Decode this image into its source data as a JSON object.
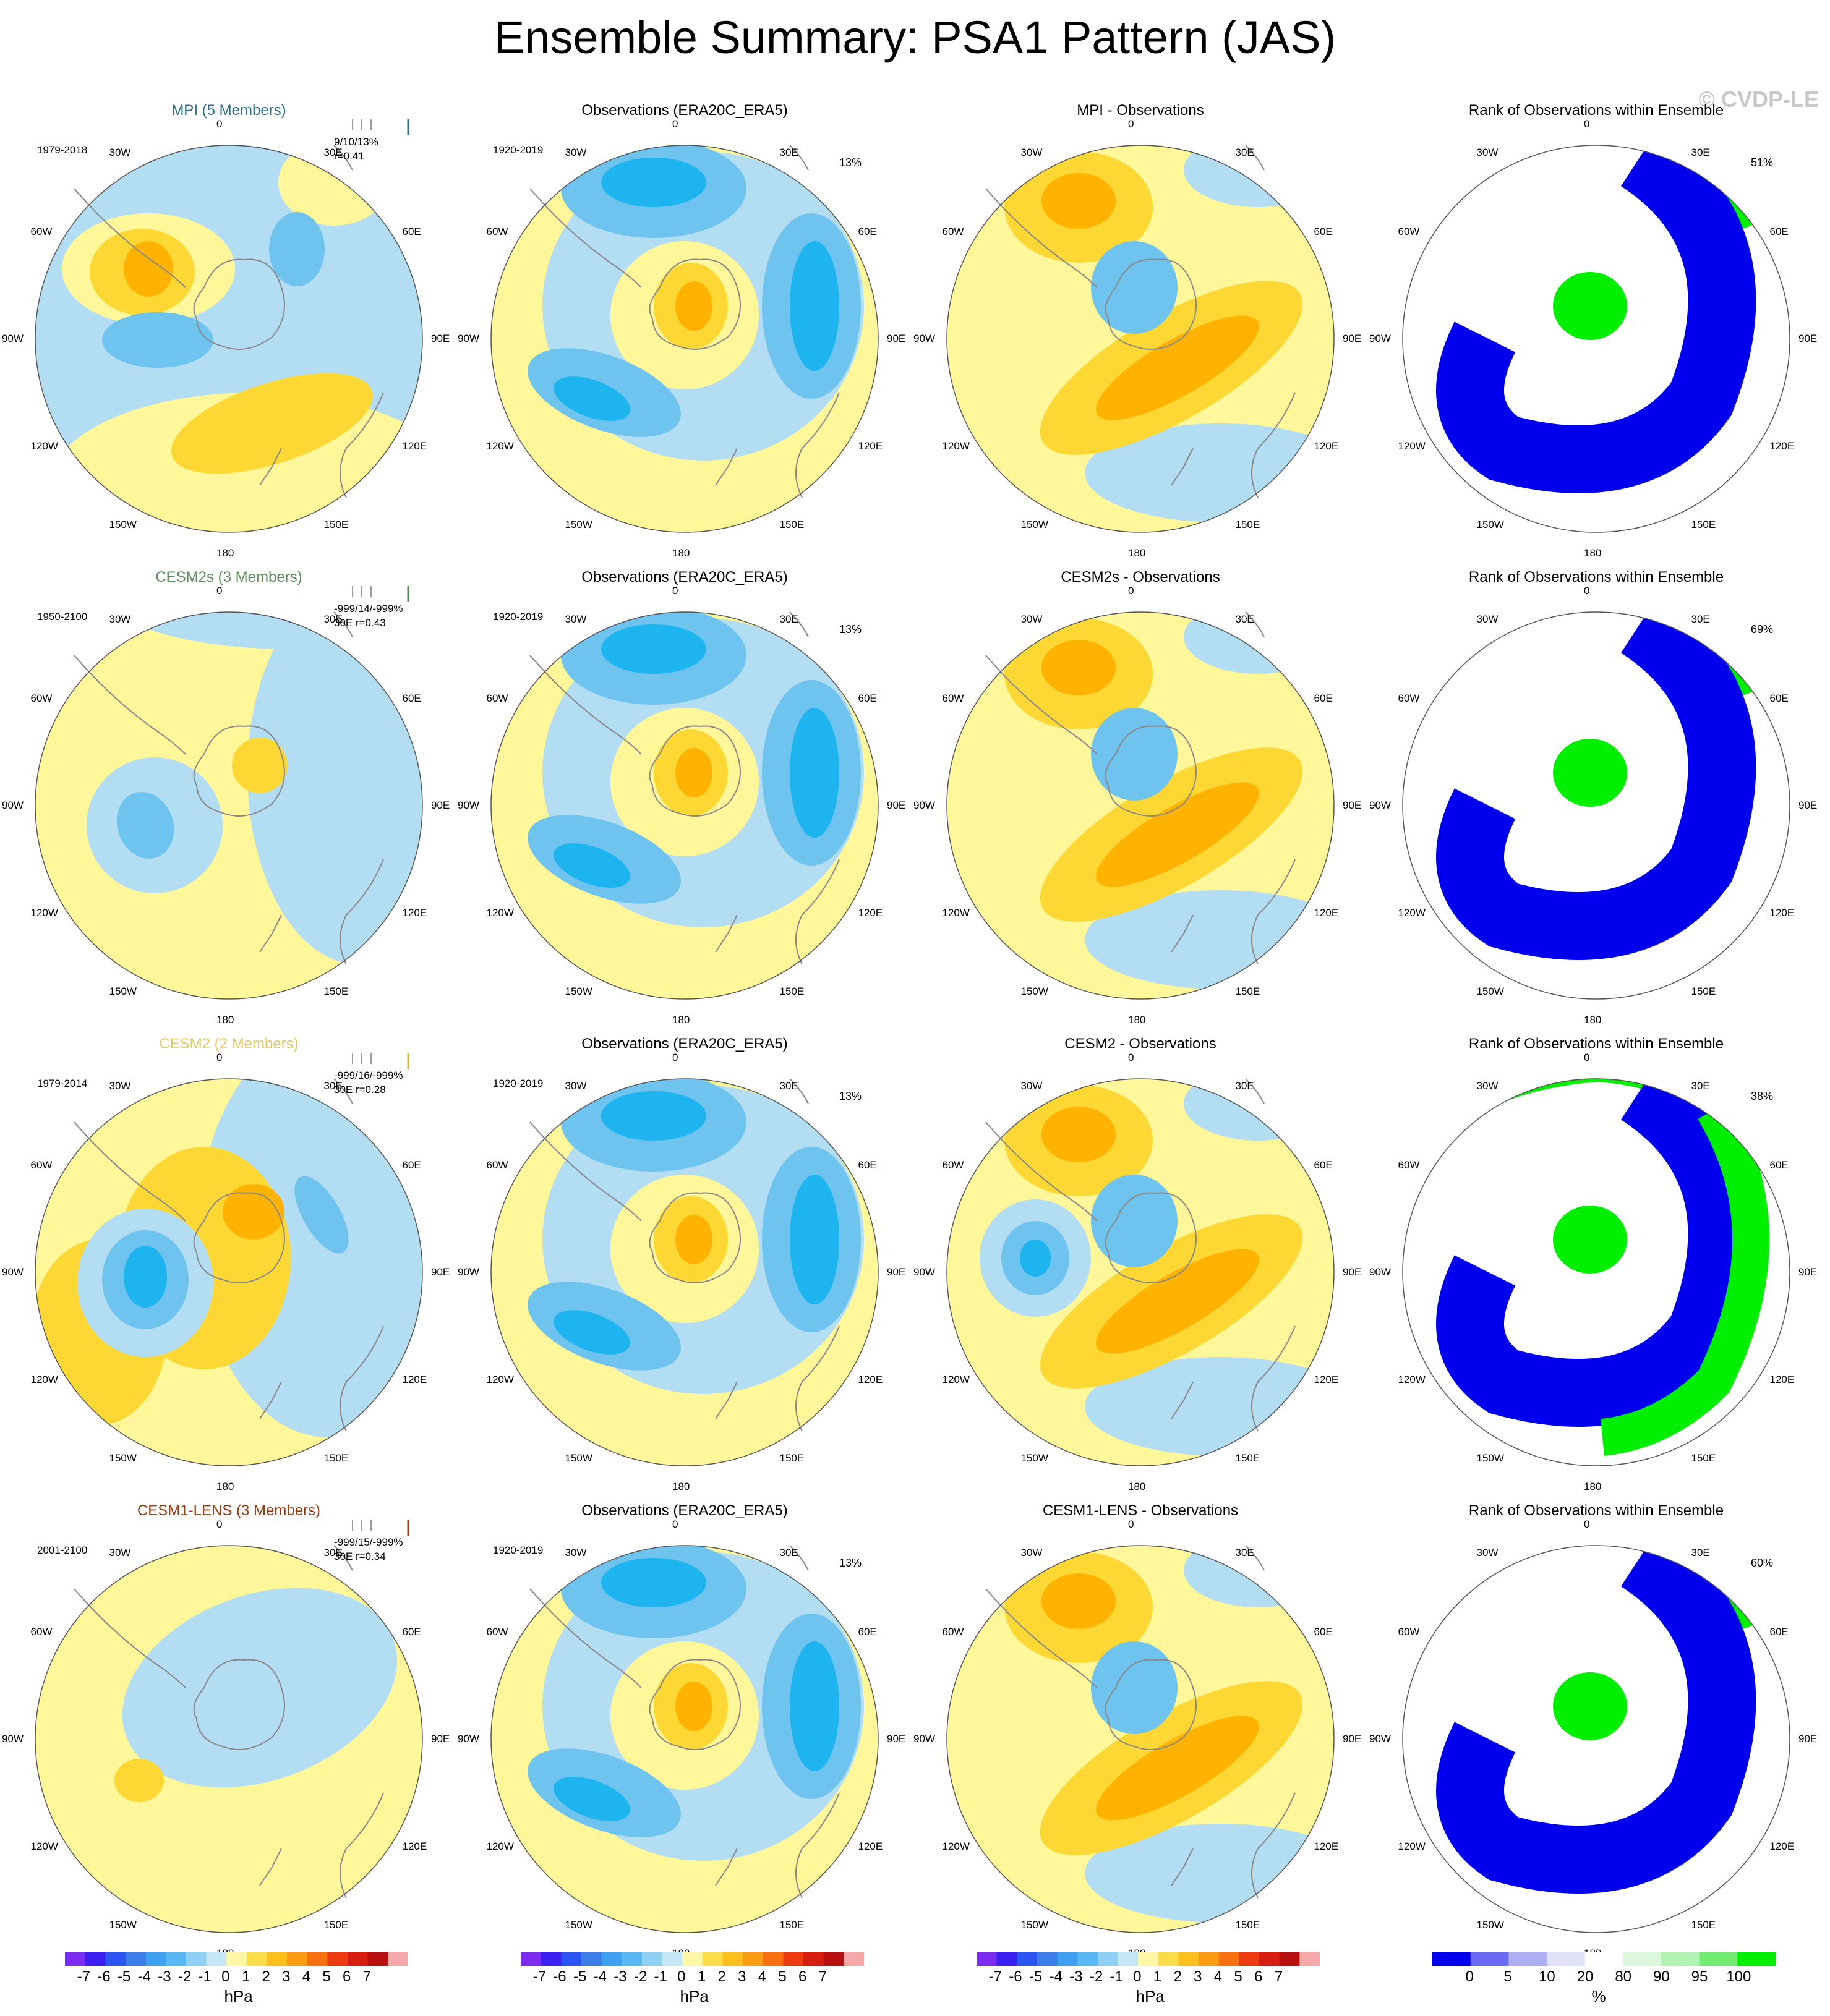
{
  "title": "Ensemble Summary: PSA1 Pattern (JAS)",
  "watermark": "© CVDP-LE",
  "lon_labels": [
    "0",
    "30E",
    "60E",
    "90E",
    "120E",
    "150E",
    "180",
    "150W",
    "120W",
    "90W",
    "60W",
    "30W"
  ],
  "colors": {
    "neutral_pos": "#fff799",
    "pos1": "#fdd835",
    "pos2": "#ffb300",
    "pos3": "#fb8c00",
    "neg1": "#b3ddf2",
    "neg2": "#6ec3ef",
    "neg3": "#1eb4f0",
    "rank_blue": "#0000ee",
    "rank_green": "#00ee00",
    "coast": "#888888"
  },
  "rows": [
    {
      "model": {
        "title": "MPI (5 Members)",
        "title_color": "#2b6e8c",
        "period": "1979-2018",
        "stats1": "9/10/13%",
        "stats2": "r=0.41",
        "bar_color": "#2b6e8c"
      },
      "obs": {
        "title": "Observations (ERA20C_ERA5)",
        "period": "1920-2019",
        "percent": "13%"
      },
      "diff": {
        "title": "MPI - Observations"
      },
      "rank": {
        "title": "Rank of Observations within Ensemble",
        "percent": "51%"
      }
    },
    {
      "model": {
        "title": "CESM2s (3 Members)",
        "title_color": "#5a8a5a",
        "period": "1950-2100",
        "stats1": "-999/14/-999%",
        "stats2": "30E r=0.43",
        "bar_color": "#4e8a4e"
      },
      "obs": {
        "title": "Observations (ERA20C_ERA5)",
        "period": "1920-2019",
        "percent": "13%"
      },
      "diff": {
        "title": "CESM2s - Observations"
      },
      "rank": {
        "title": "Rank of Observations within Ensemble",
        "percent": "69%"
      }
    },
    {
      "model": {
        "title": "CESM2 (2 Members)",
        "title_color": "#e0c860",
        "period": "1979-2014",
        "stats1": "-999/16/-999%",
        "stats2": "30E r=0.28",
        "bar_color": "#d8b040"
      },
      "obs": {
        "title": "Observations (ERA20C_ERA5)",
        "period": "1920-2019",
        "percent": "13%"
      },
      "diff": {
        "title": "CESM2 - Observations"
      },
      "rank": {
        "title": "Rank of Observations within Ensemble",
        "percent": "38%"
      }
    },
    {
      "model": {
        "title": "CESM1-LENS (3 Members)",
        "title_color": "#9a3a10",
        "period": "2001-2100",
        "stats1": "-999/15/-999%",
        "stats2": "30E r=0.34",
        "bar_color": "#9a3a10"
      },
      "obs": {
        "title": "Observations (ERA20C_ERA5)",
        "period": "1920-2019",
        "percent": "13%"
      },
      "diff": {
        "title": "CESM1-LENS - Observations"
      },
      "rank": {
        "title": "Rank of Observations within Ensemble",
        "percent": "60%"
      }
    }
  ],
  "colorbars": {
    "hpa": {
      "unit": "hPa",
      "ticks": [
        "-7",
        "-6",
        "-5",
        "-4",
        "-3",
        "-2",
        "-1",
        "0",
        "1",
        "2",
        "3",
        "4",
        "5",
        "6",
        "7"
      ],
      "colors": [
        "#7b2cf0",
        "#3b1ef0",
        "#2a55f0",
        "#3c7ee8",
        "#3ea0f0",
        "#57b8f4",
        "#8fd0f4",
        "#c4e7f6",
        "#fff6a6",
        "#fddc4a",
        "#fdbf1e",
        "#fb9b14",
        "#f87010",
        "#ee3a10",
        "#d81e10",
        "#b81010",
        "#f4a8a8"
      ]
    },
    "rank": {
      "unit": "%",
      "ticks": [
        "0",
        "5",
        "10",
        "20",
        "80",
        "90",
        "95",
        "100"
      ],
      "colors": [
        "#0000ee",
        "#6a6af2",
        "#aeaef2",
        "#e0e0f8",
        "#ffffff",
        "#dcf8dc",
        "#b2f2b2",
        "#72ec72",
        "#00ee00"
      ]
    }
  },
  "chart_data": [
    {
      "type": "heatmap",
      "title": "MPI (5 Members)",
      "projection": "south polar stereographic",
      "units": "hPa",
      "period": "1979-2018",
      "values": "spatial field: positive (yellow/orange) centers near 80W and 150E-180, negative (blue) centers near 110W and 60E"
    },
    {
      "type": "heatmap",
      "title": "Observations (ERA20C_ERA5)",
      "period": "1920-2019",
      "units": "hPa",
      "percent": "13%"
    },
    {
      "type": "heatmap",
      "title": "MPI - Observations",
      "units": "hPa"
    },
    {
      "type": "heatmap",
      "title": "Rank of Observations within Ensemble",
      "units": "%",
      "percent": "51%"
    },
    {
      "type": "heatmap",
      "title": "CESM2s (3 Members)",
      "period": "1950-2100",
      "units": "hPa"
    },
    {
      "type": "heatmap",
      "title": "CESM2s - Observations",
      "units": "hPa"
    },
    {
      "type": "heatmap",
      "title": "Rank of Observations within Ensemble",
      "units": "%",
      "percent": "69%"
    },
    {
      "type": "heatmap",
      "title": "CESM2 (2 Members)",
      "period": "1979-2014",
      "units": "hPa"
    },
    {
      "type": "heatmap",
      "title": "CESM2 - Observations",
      "units": "hPa"
    },
    {
      "type": "heatmap",
      "title": "Rank of Observations within Ensemble",
      "units": "%",
      "percent": "38%"
    },
    {
      "type": "heatmap",
      "title": "CESM1-LENS (3 Members)",
      "period": "2001-2100",
      "units": "hPa"
    },
    {
      "type": "heatmap",
      "title": "CESM1-LENS - Observations",
      "units": "hPa"
    },
    {
      "type": "heatmap",
      "title": "Rank of Observations within Ensemble",
      "units": "%",
      "percent": "60%"
    }
  ]
}
